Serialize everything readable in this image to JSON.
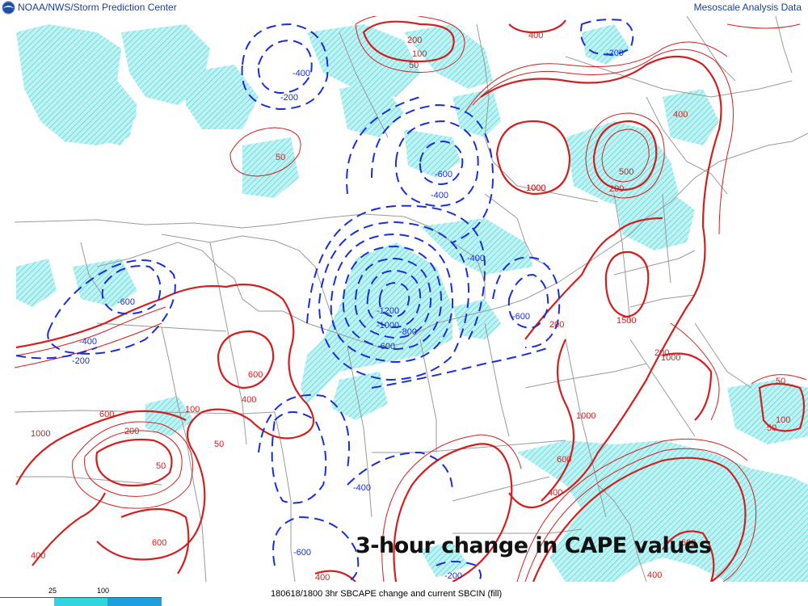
{
  "header": {
    "source": "NOAA/NWS/Storm Prediction Center",
    "product": "Mesoscale Analysis Data",
    "logo_icon": "noaa-logo-icon"
  },
  "overlay": {
    "title": "3-hour change in CAPE values"
  },
  "legend": {
    "ticks": [
      "25",
      "100"
    ],
    "colors": {
      "low": "#2fd6e0",
      "high": "#1e9fe0"
    }
  },
  "footer": {
    "caption": "180618/1800 3hr SBCAPE change and current SBCIN (fill)"
  },
  "colors": {
    "positive_contour": "#d21f1f",
    "negative_contour": "#1a2fd6",
    "cin_fill": "#aef0f0",
    "boundaries": "#9a9a9a"
  },
  "contour_labels": {
    "positive": [
      "200",
      "100",
      "50",
      "400",
      "50",
      "1000",
      "400",
      "500",
      "200",
      "1000",
      "1500",
      "200",
      "1000",
      "50",
      "100",
      "50",
      "600",
      "400",
      "100",
      "50",
      "200",
      "600",
      "1000",
      "50",
      "1000",
      "600",
      "400",
      "600",
      "400",
      "200",
      "400",
      "600",
      "400"
    ],
    "negative": [
      "-400",
      "-200",
      "-600",
      "-400",
      "-400",
      "-600",
      "-400",
      "-200",
      "-1200",
      "-1000",
      "-800",
      "-600",
      "-600",
      "-400",
      "-600",
      "-200",
      "-200"
    ]
  }
}
